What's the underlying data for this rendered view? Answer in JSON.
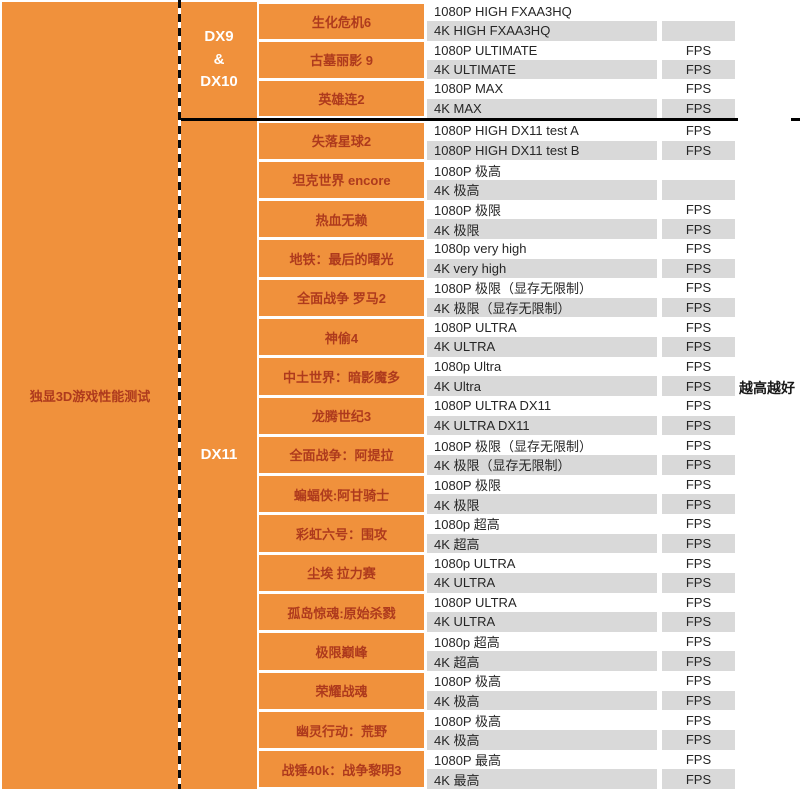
{
  "title_panel": {
    "label": "独显3D游戏性能测试"
  },
  "api_groups": {
    "dx9": {
      "lines": [
        "DX9",
        "&",
        "DX10"
      ]
    },
    "dx11": {
      "label": "DX11"
    }
  },
  "note_right": "越高越好",
  "colors": {
    "orange": "#f0913c",
    "game_text_red": "#ae3a1d",
    "row_alt_gray": "#d9d9d9",
    "divider_black": "#000000"
  },
  "table": {
    "fps_label": "FPS",
    "games": [
      {
        "name": "生化危机6",
        "api": "DX9",
        "tests": [
          {
            "setting": "1080P HIGH FXAA3HQ",
            "fps": ""
          },
          {
            "setting": "4K HIGH FXAA3HQ",
            "fps": ""
          }
        ]
      },
      {
        "name": "古墓丽影 9",
        "api": "DX9",
        "tests": [
          {
            "setting": "1080P ULTIMATE",
            "fps": "FPS"
          },
          {
            "setting": "4K ULTIMATE",
            "fps": "FPS"
          }
        ]
      },
      {
        "name": "英雄连2",
        "api": "DX9",
        "tests": [
          {
            "setting": "1080P MAX",
            "fps": "FPS"
          },
          {
            "setting": "4K MAX",
            "fps": "FPS"
          }
        ]
      },
      {
        "name": "失落星球2",
        "api": "DX11",
        "tests": [
          {
            "setting": "1080P HIGH DX11 test A",
            "fps": "FPS"
          },
          {
            "setting": "1080P HIGH DX11 test B",
            "fps": "FPS"
          }
        ]
      },
      {
        "name": "坦克世界 encore",
        "api": "DX11",
        "tests": [
          {
            "setting": "1080P 极高",
            "fps": ""
          },
          {
            "setting": "4K 极高",
            "fps": ""
          }
        ]
      },
      {
        "name": "热血无赖",
        "api": "DX11",
        "tests": [
          {
            "setting": "1080P 极限",
            "fps": "FPS"
          },
          {
            "setting": "4K 极限",
            "fps": "FPS"
          }
        ]
      },
      {
        "name": "地铁：最后的曙光",
        "api": "DX11",
        "tests": [
          {
            "setting": "1080p very high",
            "fps": "FPS"
          },
          {
            "setting": "4K very high",
            "fps": "FPS"
          }
        ]
      },
      {
        "name": "全面战争 罗马2",
        "api": "DX11",
        "tests": [
          {
            "setting": "1080P 极限（显存无限制）",
            "fps": "FPS"
          },
          {
            "setting": "4K 极限（显存无限制）",
            "fps": "FPS"
          }
        ]
      },
      {
        "name": "神偷4",
        "api": "DX11",
        "tests": [
          {
            "setting": "1080P ULTRA",
            "fps": "FPS"
          },
          {
            "setting": "4K ULTRA",
            "fps": "FPS"
          }
        ]
      },
      {
        "name": "中土世界：暗影魔多",
        "api": "DX11",
        "tests": [
          {
            "setting": "1080p Ultra",
            "fps": "FPS"
          },
          {
            "setting": "4K Ultra",
            "fps": "FPS"
          }
        ]
      },
      {
        "name": "龙腾世纪3",
        "api": "DX11",
        "tests": [
          {
            "setting": "1080P ULTRA DX11",
            "fps": "FPS"
          },
          {
            "setting": "4K ULTRA DX11",
            "fps": "FPS"
          }
        ]
      },
      {
        "name": "全面战争：阿提拉",
        "api": "DX11",
        "tests": [
          {
            "setting": "1080P 极限（显存无限制）",
            "fps": "FPS"
          },
          {
            "setting": "4K 极限（显存无限制）",
            "fps": "FPS"
          }
        ]
      },
      {
        "name": "蝙蝠侠:阿甘骑士",
        "api": "DX11",
        "tests": [
          {
            "setting": "1080P 极限",
            "fps": "FPS"
          },
          {
            "setting": "4K 极限",
            "fps": "FPS"
          }
        ]
      },
      {
        "name": "彩虹六号：围攻",
        "api": "DX11",
        "tests": [
          {
            "setting": "1080p 超高",
            "fps": "FPS"
          },
          {
            "setting": "4K 超高",
            "fps": "FPS"
          }
        ]
      },
      {
        "name": "尘埃 拉力赛",
        "api": "DX11",
        "tests": [
          {
            "setting": "1080p ULTRA",
            "fps": "FPS"
          },
          {
            "setting": "4K ULTRA",
            "fps": "FPS"
          }
        ]
      },
      {
        "name": "孤岛惊魂:原始杀戮",
        "api": "DX11",
        "tests": [
          {
            "setting": "1080P ULTRA",
            "fps": "FPS"
          },
          {
            "setting": "4K ULTRA",
            "fps": "FPS"
          }
        ]
      },
      {
        "name": "极限巅峰",
        "api": "DX11",
        "tests": [
          {
            "setting": "1080p 超高",
            "fps": "FPS"
          },
          {
            "setting": "4K 超高",
            "fps": "FPS"
          }
        ]
      },
      {
        "name": "荣耀战魂",
        "api": "DX11",
        "tests": [
          {
            "setting": "1080P 极高",
            "fps": "FPS"
          },
          {
            "setting": "4K 极高",
            "fps": "FPS"
          }
        ]
      },
      {
        "name": "幽灵行动：荒野",
        "api": "DX11",
        "tests": [
          {
            "setting": "1080P 极高",
            "fps": "FPS"
          },
          {
            "setting": "4K 极高",
            "fps": "FPS"
          }
        ]
      },
      {
        "name": "战锤40k：战争黎明3",
        "api": "DX11",
        "tests": [
          {
            "setting": "1080P 最高",
            "fps": "FPS"
          },
          {
            "setting": "4K 最高",
            "fps": "FPS"
          }
        ]
      }
    ]
  }
}
